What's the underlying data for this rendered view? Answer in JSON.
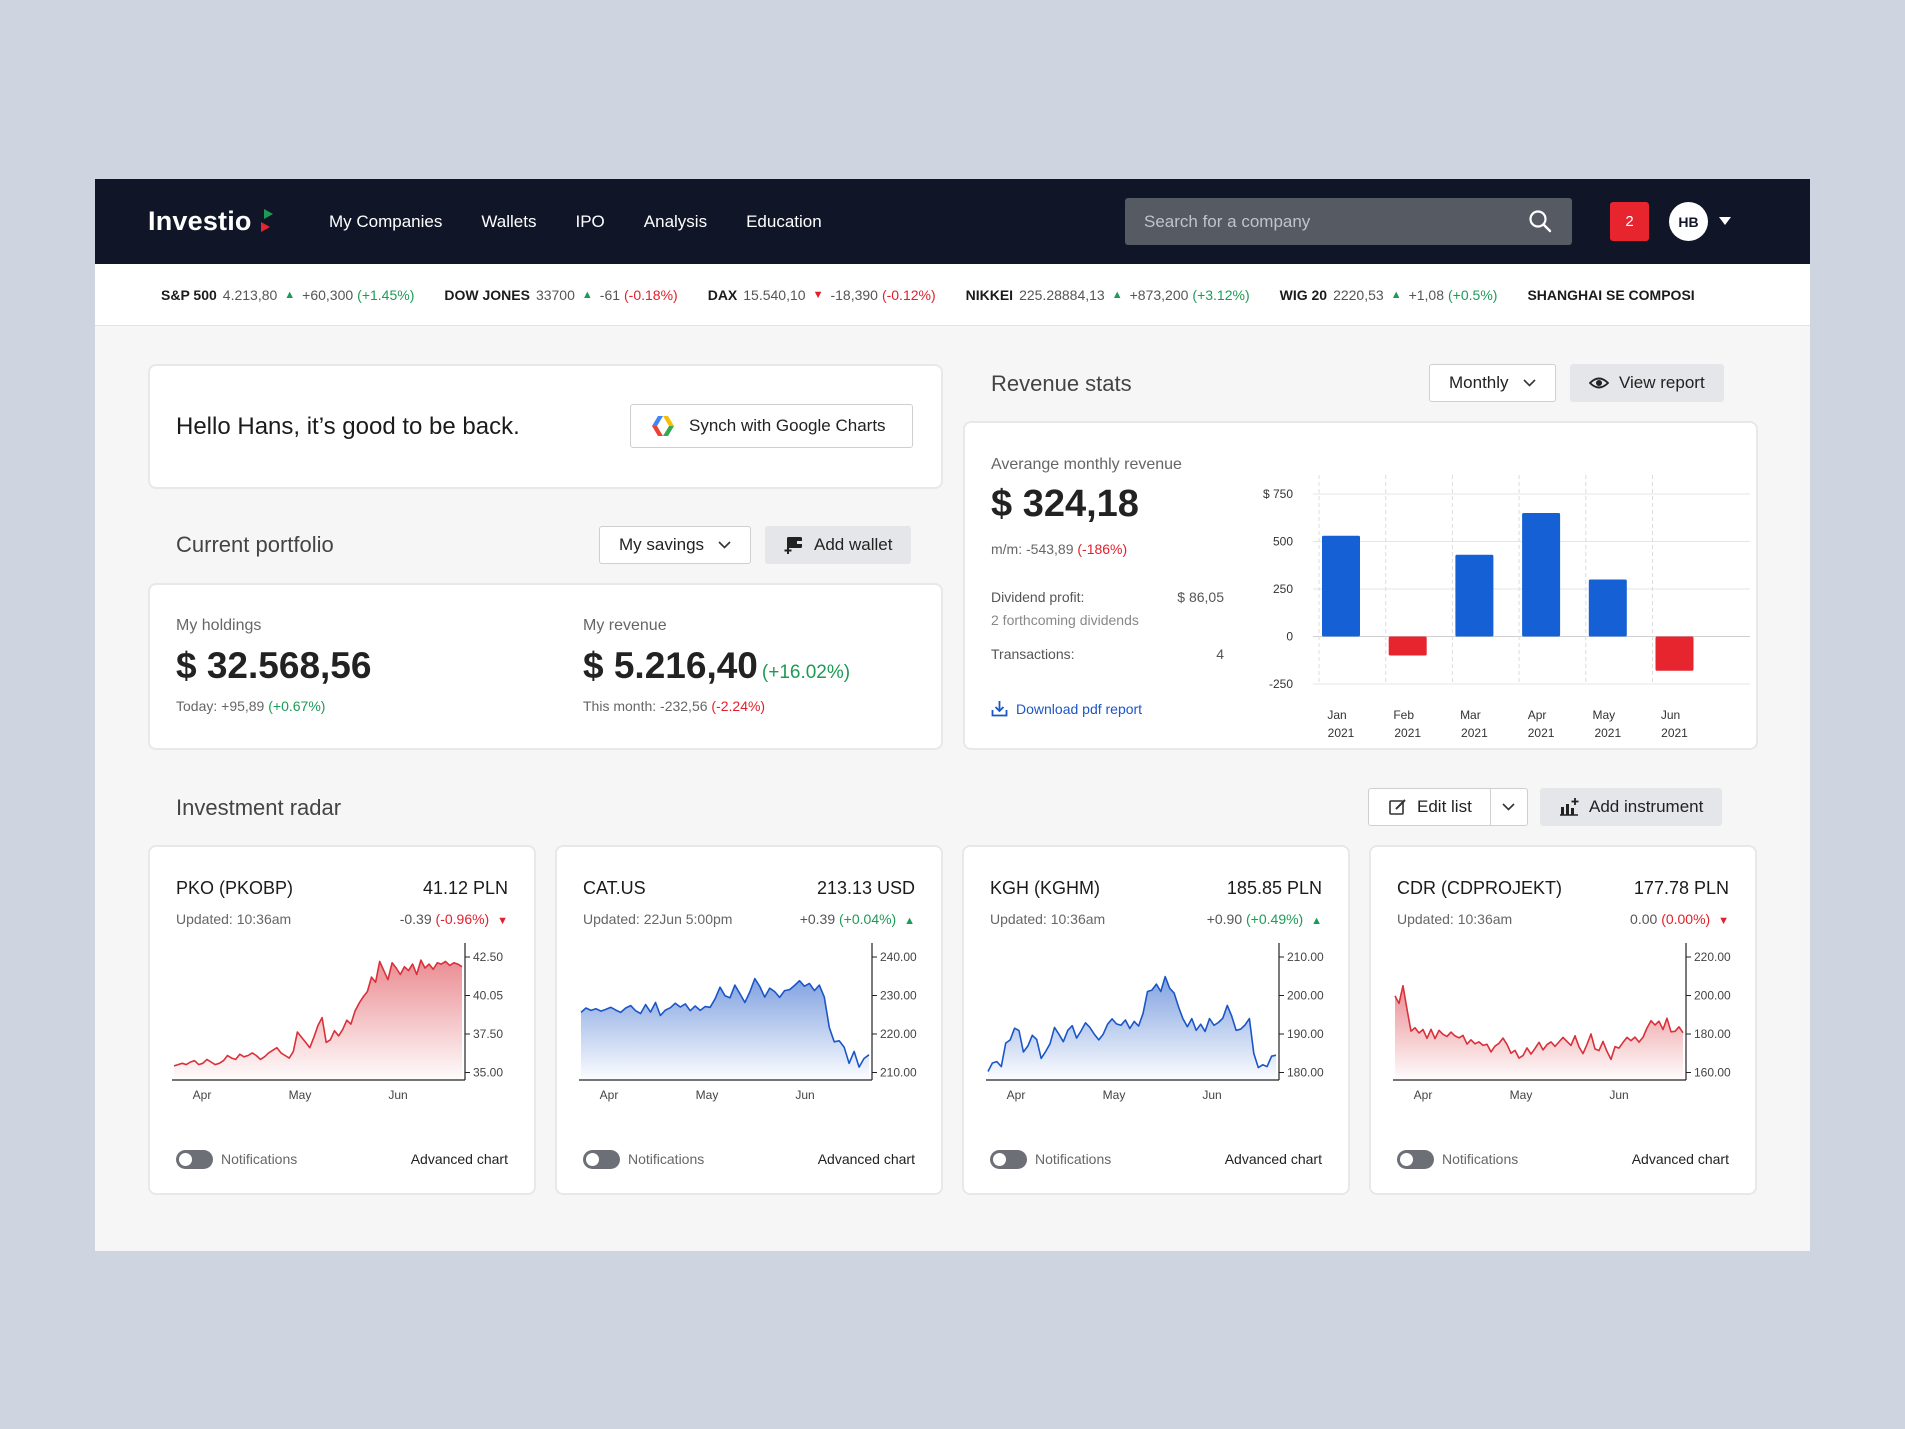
{
  "app": {
    "name": "Investio"
  },
  "nav": {
    "links": [
      "My Companies",
      "Wallets",
      "IPO",
      "Analysis",
      "Education"
    ],
    "search_placeholder": "Search for a company",
    "notifications_count": "2",
    "avatar_initials": "HB"
  },
  "ticker": [
    {
      "name": "S&P 500",
      "value": "4.213,80",
      "dir": "up",
      "change": "+60,300",
      "pct": "(+1.45%)"
    },
    {
      "name": "DOW JONES",
      "value": "33700",
      "dir": "up",
      "change": "-61",
      "pct": "(-0.18%)"
    },
    {
      "name": "DAX",
      "value": "15.540,10",
      "dir": "down",
      "change": "-18,390",
      "pct": "(-0.12%)"
    },
    {
      "name": "NIKKEI",
      "value": "225.28884,13",
      "dir": "up",
      "change": "+873,200",
      "pct": "(+3.12%)"
    },
    {
      "name": "WIG 20",
      "value": "2220,53",
      "dir": "up",
      "change": "+1,08",
      "pct": "(+0.5%)"
    },
    {
      "name": "SHANGHAI SE COMPOSI",
      "value": "",
      "dir": "",
      "change": "",
      "pct": ""
    }
  ],
  "greeting": {
    "text": "Hello Hans, it’s good to be back.",
    "sync_button": "Synch with Google Charts"
  },
  "portfolio": {
    "title": "Current portfolio",
    "select": "My savings",
    "add_wallet": "Add wallet",
    "holdings_label": "My holdings",
    "holdings_value": "$ 32.568,56",
    "holdings_sub_prefix": "Today: +95,89",
    "holdings_sub_pct": "(+0.67%)",
    "revenue_label": "My revenue",
    "revenue_value": "$ 5.216,40",
    "revenue_pct": "(+16.02%)",
    "revenue_sub_prefix": "This month: -232,56",
    "revenue_sub_pct": "(-2.24%)"
  },
  "revenue": {
    "title": "Revenue stats",
    "period": "Monthly",
    "view_report": "View report",
    "avg_label": "Averange monthly revenue",
    "avg_value": "$ 324,18",
    "mm_prefix": "m/m: -543,89",
    "mm_pct": "(-186%)",
    "dividend_label": "Dividend profit:",
    "dividend_value": "$ 86,05",
    "forthcoming": "2 forthcoming dividends",
    "transactions_label": "Transactions:",
    "transactions_value": "4",
    "download": "Download pdf report"
  },
  "chart_data": {
    "type": "bar",
    "categories": [
      "Jan 2021",
      "Feb 2021",
      "Mar 2021",
      "Apr 2021",
      "May 2021",
      "Jun 2021"
    ],
    "values": [
      530,
      -100,
      430,
      650,
      300,
      -180
    ],
    "ylim": [
      -250,
      750
    ],
    "yticks": [
      750,
      500,
      250,
      0,
      -250
    ],
    "ytick_labels": [
      "$ 750",
      "500",
      "250",
      "0",
      "-250"
    ],
    "xlabel": "",
    "ylabel": "",
    "colors": {
      "positive": "#1560d4",
      "negative": "#e6252f"
    },
    "grid": true
  },
  "radar": {
    "title": "Investment radar",
    "edit_list": "Edit list",
    "add_instrument": "Add instrument",
    "notifications_label": "Notifications",
    "advanced_label": "Advanced chart",
    "x_labels": [
      "Apr",
      "May",
      "Jun"
    ],
    "cards": [
      {
        "name": "PKO (PKOBP)",
        "price": "41.12 PLN",
        "updated": "Updated: 10:36am",
        "change": "-0.39",
        "pct": "(-0.96%)",
        "dir": "down",
        "color": "#d9303a",
        "yticks": [
          "42.50",
          "40.05",
          "37.50",
          "35.00"
        ],
        "ylim": [
          33.8,
          43.6
        ],
        "series": [
          34.8,
          34.9,
          35.0,
          34.9,
          35.1,
          35.2,
          34.9,
          35.0,
          35.3,
          35.1,
          34.9,
          35.0,
          35.2,
          35.6,
          35.4,
          35.3,
          35.7,
          35.5,
          35.6,
          35.8,
          35.6,
          35.3,
          35.5,
          35.8,
          36.0,
          36.2,
          35.8,
          35.6,
          35.4,
          35.9,
          37.4,
          37.0,
          36.6,
          36.2,
          37.0,
          37.9,
          38.5,
          36.6,
          36.8,
          37.5,
          37.1,
          37.6,
          38.3,
          38.0,
          39.0,
          39.6,
          40.1,
          40.5,
          41.6,
          41.2,
          42.8,
          42.1,
          41.4,
          42.7,
          42.3,
          41.8,
          42.4,
          42.1,
          42.6,
          41.8,
          42.9,
          42.3,
          42.6,
          42.2,
          42.7,
          42.6,
          42.8,
          42.5,
          42.7,
          42.6,
          42.4
        ]
      },
      {
        "name": "CAT.US",
        "price": "213.13 USD",
        "updated": "Updated: 22Jun 5:00pm",
        "change": "+0.39",
        "pct": "(+0.04%)",
        "dir": "up",
        "color": "#1a56c8",
        "yticks": [
          "240.00",
          "230.00",
          "220.00",
          "210.00"
        ],
        "ylim": [
          206.0,
          243.5
        ],
        "series": [
          225.5,
          226.8,
          226.1,
          226.6,
          225.9,
          226.4,
          227.0,
          226.2,
          225.5,
          226.8,
          227.5,
          226.0,
          225.2,
          227.8,
          225.6,
          228.4,
          224.6,
          226.2,
          226.9,
          228.2,
          227.1,
          228.0,
          226.0,
          227.4,
          226.1,
          227.2,
          227.0,
          229.5,
          232.9,
          230.4,
          229.8,
          233.5,
          231.0,
          228.4,
          231.5,
          235.4,
          233.1,
          230.0,
          232.6,
          231.6,
          229.9,
          231.9,
          232.2,
          233.4,
          234.8,
          233.2,
          234.0,
          231.9,
          233.5,
          230.0,
          221.1,
          216.9,
          217.2,
          215.3,
          210.6,
          214.1,
          209.5,
          212.0,
          213.1
        ]
      },
      {
        "name": "KGH (KGHM)",
        "price": "185.85 PLN",
        "updated": "Updated: 10:36am",
        "change": "+0.90",
        "pct": "(+0.49%)",
        "dir": "up",
        "color": "#1a56c8",
        "yticks": [
          "210.00",
          "200.00",
          "190.00",
          "180.00"
        ],
        "ylim": [
          176.5,
          212.5
        ],
        "series": [
          178.6,
          181.0,
          181.4,
          180.0,
          186.6,
          187.5,
          190.8,
          190.1,
          184.1,
          185.8,
          188.8,
          187.6,
          182.3,
          184.2,
          186.4,
          191.0,
          189.1,
          187.0,
          190.2,
          191.5,
          188.0,
          190.0,
          192.3,
          191.0,
          189.1,
          187.5,
          189.1,
          191.9,
          193.4,
          192.0,
          191.6,
          193.1,
          190.7,
          192.7,
          191.4,
          195.0,
          201.1,
          201.5,
          203.2,
          201.1,
          205.3,
          202.0,
          200.7,
          196.8,
          193.4,
          191.2,
          193.5,
          190.2,
          191.9,
          189.9,
          193.5,
          191.6,
          192.4,
          193.6,
          197.2,
          194.2,
          190.2,
          190.5,
          191.7,
          193.5,
          183.7,
          179.7,
          180.5,
          180.0,
          182.9,
          183.2
        ]
      },
      {
        "name": "CDR (CDPROJEKT)",
        "price": "177.78 PLN",
        "updated": "Updated: 10:36am",
        "change": "0.00",
        "pct": "(0.00%)",
        "dir": "down",
        "color": "#d9303a",
        "yticks": [
          "220.00",
          "200.00",
          "180.00",
          "160.00"
        ],
        "ylim": [
          150.0,
          227.0
        ],
        "series": [
          200.0,
          195.5,
          206.1,
          191.9,
          178.8,
          180.8,
          177.7,
          179.8,
          174.5,
          179.9,
          174.3,
          179.3,
          176.9,
          175.6,
          178.2,
          175.9,
          174.8,
          176.2,
          171.0,
          173.6,
          171.2,
          172.3,
          170.2,
          170.9,
          166.3,
          169.8,
          171.5,
          174.6,
          170.8,
          165.5,
          167.2,
          162.6,
          164.1,
          168.7,
          165.0,
          168.4,
          172.1,
          167.5,
          170.7,
          172.3,
          169.6,
          172.3,
          175.0,
          172.6,
          170.2,
          176.0,
          169.4,
          165.3,
          170.8,
          177.1,
          168.1,
          167.1,
          172.6,
          166.6,
          161.8,
          169.5,
          168.6,
          172.0,
          175.0,
          173.1,
          175.2,
          172.2,
          175.1,
          180.7,
          185.1,
          182.5,
          184.8,
          179.8,
          186.6,
          178.4,
          178.7,
          181.4,
          177.8
        ]
      }
    ]
  }
}
